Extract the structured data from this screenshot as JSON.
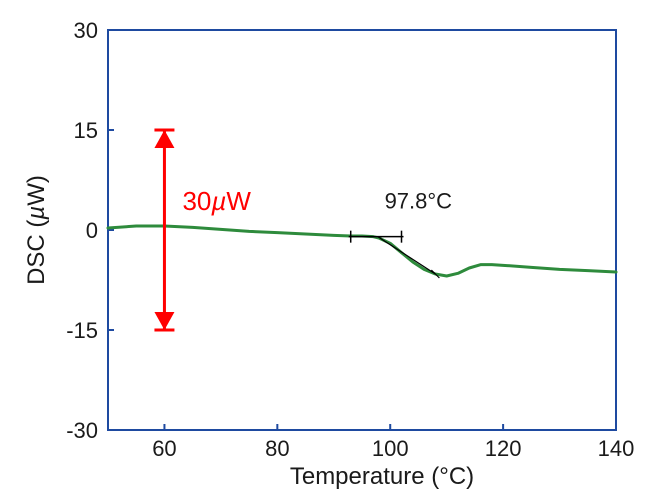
{
  "chart": {
    "type": "line",
    "background_color": "#ffffff",
    "plot_border_color": "#1e4aa0",
    "plot_border_width": 2,
    "grid": false,
    "x": {
      "label": "Temperature (°C)",
      "lim": [
        50,
        140
      ],
      "ticks": [
        60,
        80,
        100,
        120,
        140
      ],
      "tick_labels": [
        "60",
        "80",
        "100",
        "120",
        "140"
      ],
      "tick_length": 6,
      "label_fontsize": 24,
      "tick_fontsize": 22
    },
    "y": {
      "label": "DSC (µW)",
      "lim": [
        -30,
        30
      ],
      "ticks": [
        -30,
        -15,
        0,
        15,
        30
      ],
      "tick_labels": [
        "-30",
        "-15",
        "0",
        "15",
        "30"
      ],
      "tick_length": 6,
      "label_fontsize": 24,
      "tick_fontsize": 22
    },
    "series": [
      {
        "name": "dsc-curve",
        "color": "#2e8b3c",
        "line_width": 3,
        "x": [
          50,
          55,
          60,
          65,
          70,
          75,
          80,
          85,
          90,
          93,
          95,
          97,
          98,
          100,
          102,
          104,
          106,
          108,
          110,
          112,
          114,
          116,
          118,
          120,
          125,
          130,
          135,
          140
        ],
        "y": [
          0.3,
          0.6,
          0.6,
          0.4,
          0.1,
          -0.2,
          -0.4,
          -0.6,
          -0.8,
          -0.9,
          -0.9,
          -1.0,
          -1.2,
          -2.0,
          -3.4,
          -4.8,
          -5.9,
          -6.6,
          -6.9,
          -6.5,
          -5.7,
          -5.2,
          -5.2,
          -5.3,
          -5.6,
          -5.9,
          -6.1,
          -6.3
        ]
      }
    ],
    "onset_marker": {
      "temperature": 97.8,
      "label": "97.8°C",
      "label_fontsize": 22,
      "color": "#000000",
      "tick_positions_x": [
        93,
        102
      ],
      "baseline_y": -1.0
    },
    "scale_bar": {
      "x": 60,
      "y_top": 15,
      "y_bottom": -15,
      "label": "30µW",
      "label_fontsize": 26,
      "color": "#ff0000",
      "line_width": 3,
      "arrowhead_size": 10
    }
  }
}
